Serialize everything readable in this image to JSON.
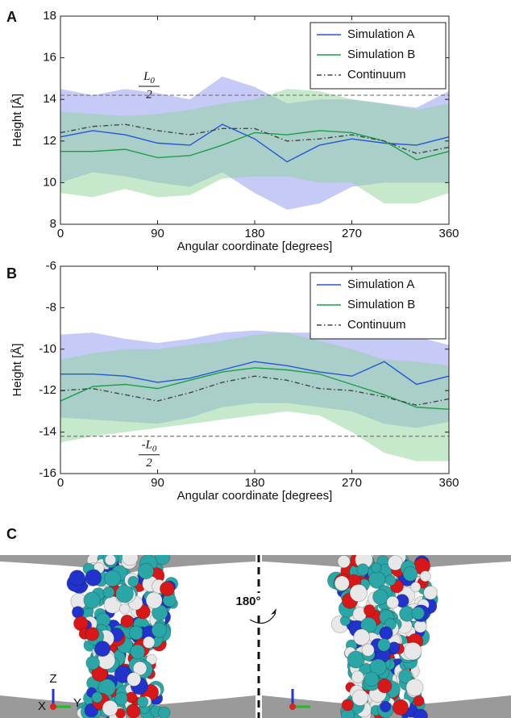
{
  "chart_data": [
    {
      "type": "line",
      "panel": "A",
      "ylabel": "Height [Å]",
      "xlabel": "Angular coordinate [degrees]",
      "x": [
        0,
        30,
        60,
        90,
        120,
        150,
        180,
        210,
        240,
        270,
        300,
        330,
        360
      ],
      "xlim": [
        0,
        360
      ],
      "xticks": [
        0,
        90,
        180,
        270,
        360
      ],
      "ylim": [
        8,
        18
      ],
      "yticks": [
        8,
        10,
        12,
        14,
        16,
        18
      ],
      "legend": "upper right",
      "reference_line": 14.2,
      "annotation": {
        "symbol": "L",
        "subscript": "0",
        "denominator": "2"
      },
      "series": [
        {
          "name": "Simulation A",
          "color": "#2456d8",
          "band_color": "#8c96f0",
          "linestyle": "solid",
          "values": [
            12.2,
            12.5,
            12.3,
            11.9,
            11.8,
            12.8,
            12.1,
            11.0,
            11.8,
            12.1,
            11.9,
            11.8,
            12.2
          ],
          "upper": [
            14.5,
            14.2,
            14.5,
            14.3,
            14.0,
            15.1,
            14.6,
            13.8,
            14.0,
            14.0,
            13.8,
            13.6,
            14.4
          ],
          "lower": [
            10.0,
            10.5,
            10.3,
            10.0,
            9.8,
            10.5,
            9.5,
            8.7,
            9.0,
            9.8,
            10.0,
            10.0,
            10.0
          ]
        },
        {
          "name": "Simulation B",
          "color": "#1f9e4a",
          "band_color": "#8ed39a",
          "linestyle": "solid",
          "values": [
            11.5,
            11.5,
            11.6,
            11.2,
            11.3,
            11.8,
            12.4,
            12.3,
            12.5,
            12.4,
            12.0,
            11.1,
            11.5
          ],
          "upper": [
            13.4,
            13.3,
            13.2,
            13.3,
            13.5,
            13.8,
            14.0,
            14.5,
            14.4,
            14.0,
            13.8,
            13.5,
            13.8
          ],
          "lower": [
            9.5,
            9.3,
            9.7,
            9.3,
            9.4,
            10.2,
            10.3,
            10.3,
            10.0,
            10.0,
            9.0,
            9.0,
            9.5
          ]
        },
        {
          "name": "Continuum",
          "color": "#444444",
          "linestyle": "dashdot",
          "values": [
            12.4,
            12.7,
            12.8,
            12.5,
            12.3,
            12.6,
            12.6,
            12.0,
            12.1,
            12.3,
            12.0,
            11.4,
            11.7
          ]
        }
      ]
    },
    {
      "type": "line",
      "panel": "B",
      "ylabel": "Height [Å]",
      "xlabel": "Angular coordinate [degrees]",
      "x": [
        0,
        30,
        60,
        90,
        120,
        150,
        180,
        210,
        240,
        270,
        300,
        330,
        360
      ],
      "xlim": [
        0,
        360
      ],
      "xticks": [
        0,
        90,
        180,
        270,
        360
      ],
      "ylim": [
        -16,
        -6
      ],
      "yticks": [
        -16,
        -14,
        -12,
        -10,
        -8,
        -6
      ],
      "legend": "upper right",
      "reference_line": -14.2,
      "annotation": {
        "symbol": "-L",
        "subscript": "0",
        "denominator": "2"
      },
      "series": [
        {
          "name": "Simulation A",
          "color": "#2456d8",
          "band_color": "#8c96f0",
          "linestyle": "solid",
          "values": [
            -11.2,
            -11.2,
            -11.3,
            -11.6,
            -11.4,
            -11.0,
            -10.6,
            -10.8,
            -11.1,
            -11.3,
            -10.6,
            -11.7,
            -11.3
          ],
          "upper": [
            -9.3,
            -9.2,
            -9.5,
            -9.7,
            -9.5,
            -9.2,
            -9.1,
            -9.2,
            -9.2,
            -9.2,
            -9.4,
            -9.4,
            -9.8
          ],
          "lower": [
            -13.3,
            -13.4,
            -13.5,
            -13.6,
            -13.3,
            -12.8,
            -12.6,
            -12.6,
            -12.8,
            -13.0,
            -13.6,
            -13.8,
            -13.5
          ]
        },
        {
          "name": "Simulation B",
          "color": "#1f9e4a",
          "band_color": "#8ed39a",
          "linestyle": "solid",
          "values": [
            -12.5,
            -11.8,
            -11.7,
            -11.9,
            -11.5,
            -11.1,
            -10.9,
            -11.0,
            -11.2,
            -11.7,
            -12.2,
            -12.8,
            -12.9
          ],
          "upper": [
            -10.5,
            -10.2,
            -10.0,
            -10.0,
            -9.8,
            -9.6,
            -9.3,
            -9.2,
            -9.6,
            -10.0,
            -10.5,
            -10.6,
            -10.8
          ],
          "lower": [
            -14.5,
            -14.2,
            -14.0,
            -13.8,
            -13.6,
            -13.4,
            -13.2,
            -13.0,
            -13.2,
            -14.0,
            -15.0,
            -15.4,
            -15.4
          ]
        },
        {
          "name": "Continuum",
          "color": "#444444",
          "linestyle": "dashdot",
          "values": [
            -12.0,
            -11.9,
            -12.2,
            -12.5,
            -12.1,
            -11.6,
            -11.3,
            -11.5,
            -11.9,
            -12.0,
            -12.3,
            -12.7,
            -12.4
          ]
        }
      ]
    }
  ],
  "panel_c": {
    "label": "C",
    "rotation": "180°",
    "axes": [
      "Z",
      "X",
      "Y"
    ]
  }
}
